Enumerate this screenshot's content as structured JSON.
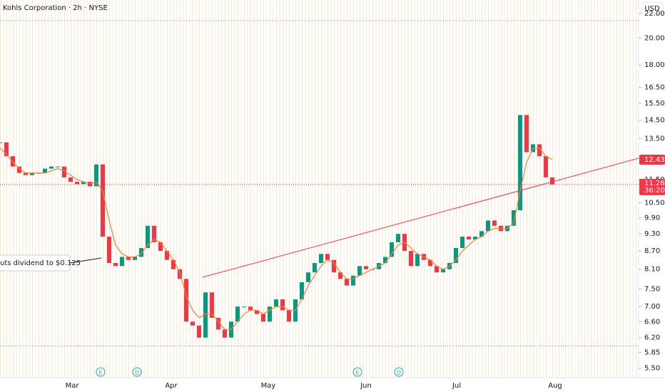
{
  "chart_data": {
    "type": "candlestick",
    "title": "Kohls Corporation · 2h · NYSE",
    "currency": "USD",
    "log_scale": true,
    "ylim": [
      5.3,
      23.2
    ],
    "yticks": [
      {
        "value": 5.5,
        "label": "5.50"
      },
      {
        "value": 5.85,
        "label": "5.85"
      },
      {
        "value": 6.2,
        "label": "6.20"
      },
      {
        "value": 6.6,
        "label": "6.60"
      },
      {
        "value": 7,
        "label": "7.00"
      },
      {
        "value": 7.5,
        "label": "7.50"
      },
      {
        "value": 8.1,
        "label": "8.10"
      },
      {
        "value": 8.7,
        "label": "8.70"
      },
      {
        "value": 9.3,
        "label": "9.30"
      },
      {
        "value": 9.9,
        "label": "9.90"
      },
      {
        "value": 10.5,
        "label": "10.50"
      },
      {
        "value": 11.5,
        "label": "11.50"
      },
      {
        "value": 13.5,
        "label": "13.50"
      },
      {
        "value": 14.5,
        "label": "14.50"
      },
      {
        "value": 15.5,
        "label": "15.50"
      },
      {
        "value": 16.5,
        "label": "16.50"
      },
      {
        "value": 18,
        "label": "18.00"
      },
      {
        "value": 20,
        "label": "20.00"
      },
      {
        "value": 22,
        "label": "22.00"
      }
    ],
    "months": [
      "Mar",
      "Apr",
      "May",
      "Jun",
      "Jul",
      "Aug"
    ],
    "series": [
      {
        "color": "#089981",
        "down_color": "#f23645",
        "values": [
          13.3,
          12.6,
          12.1,
          11.8,
          11.7,
          11.8,
          11.8,
          12.0,
          12.1,
          12.1,
          11.6,
          11.4,
          11.3,
          11.4,
          11.2,
          12.2,
          9.2,
          8.3,
          8.2,
          8.5,
          8.4,
          8.5,
          8.8,
          9.6,
          9.0,
          8.7,
          8.4,
          8.1,
          7.8,
          6.6,
          6.5,
          6.2,
          7.4,
          6.7,
          6.4,
          6.2,
          6.6,
          7.0,
          7.0,
          6.9,
          6.8,
          6.6,
          7.0,
          7.2,
          6.9,
          6.6,
          7.2,
          7.7,
          8.0,
          8.3,
          8.6,
          8.4,
          8.0,
          7.8,
          7.6,
          7.9,
          8.2,
          8.1,
          8.1,
          8.3,
          8.5,
          9.0,
          9.3,
          8.7,
          8.2,
          8.6,
          8.4,
          8.2,
          8.0,
          8.1,
          8.3,
          8.8,
          9.2,
          9.1,
          9.2,
          9.4,
          9.8,
          9.6,
          9.4,
          9.6,
          10.2,
          14.8,
          12.8,
          13.2,
          12.6,
          11.6,
          11.28
        ]
      },
      {
        "color": "#f7803a",
        "values": [
          13.0,
          12.7,
          12.3,
          12.0,
          11.8,
          11.8,
          11.8,
          11.8,
          11.9,
          12.0,
          11.9,
          11.7,
          11.5,
          11.4,
          11.3,
          11.4,
          11.0,
          9.8,
          8.9,
          8.6,
          8.5,
          8.5,
          8.6,
          8.9,
          9.1,
          9.0,
          8.7,
          8.4,
          8.0,
          7.3,
          6.9,
          6.7,
          6.8,
          6.8,
          6.6,
          6.4,
          6.4,
          6.6,
          6.8,
          6.9,
          6.9,
          6.8,
          6.9,
          7.0,
          7.0,
          6.9,
          6.9,
          7.2,
          7.6,
          7.9,
          8.2,
          8.4,
          8.3,
          8.0,
          7.8,
          7.8,
          7.9,
          8.0,
          8.1,
          8.2,
          8.3,
          8.6,
          8.9,
          9.0,
          8.8,
          8.6,
          8.5,
          8.4,
          8.2,
          8.1,
          8.2,
          8.4,
          8.7,
          8.9,
          9.1,
          9.2,
          9.4,
          9.5,
          9.5,
          9.5,
          9.7,
          11.0,
          12.3,
          13.0,
          13.0,
          12.6,
          12.43
        ]
      }
    ],
    "trendline": [
      7.85,
      12.5
    ],
    "ref_lines": [
      21.4,
      6.0
    ],
    "last_price": 11.28,
    "countdown": "36:20",
    "ma_price": 12.43,
    "annotation": "uts dividend to $0.125",
    "events": [
      "E",
      "D",
      "E",
      "D"
    ]
  }
}
